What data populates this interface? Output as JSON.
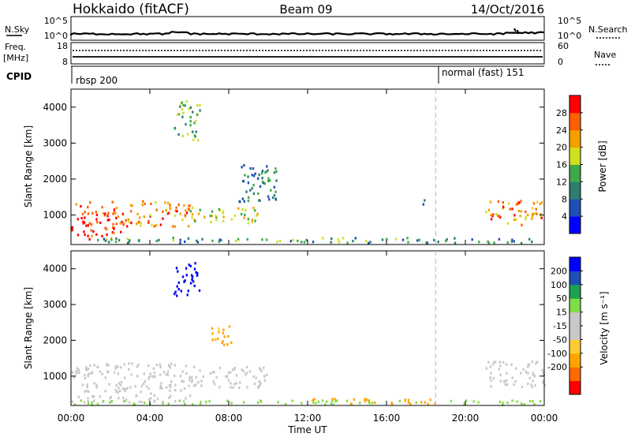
{
  "header": {
    "station": "Hokkaido (fitACF)",
    "beam": "Beam 09",
    "date": "14/Oct/2016"
  },
  "summary_panels": {
    "nsky_label": "N.Sky",
    "nsky_ticks": [
      "10^5",
      "10^0"
    ],
    "nsearch_label": "N.Search",
    "freq_label_1": "Freq.",
    "freq_label_2": "[MHz]",
    "freq_ticks": [
      "18",
      "8"
    ],
    "nave_label": "Nave",
    "nave_ticks": [
      "60",
      "0"
    ],
    "cpid_label": "CPID",
    "cpid_entries": [
      "rbsp 200",
      "normal (fast) 151"
    ]
  },
  "colors": {
    "power_scale": [
      "#0000ff",
      "#1e4fb4",
      "#2e7d6e",
      "#3ea84a",
      "#cfe01e",
      "#f6a000",
      "#ff6000",
      "#ff0000"
    ],
    "velocity_scale": [
      "#ff0000",
      "#ff6a00",
      "#ffa500",
      "#ffcc33",
      "#c8c8c8",
      "#c8c8c8",
      "#7fdd4a",
      "#1ea050",
      "#1e4fb4",
      "#0000ff"
    ],
    "ground_scatter": "#c8c8c8"
  },
  "chart_data": [
    {
      "type": "heatmap",
      "name": "power",
      "ylabel": "Slant Range [km]",
      "xlabel": "Time UT",
      "x_ticks": [
        "00:00",
        "04:00",
        "08:00",
        "12:00",
        "16:00",
        "20:00",
        "00:00"
      ],
      "xlim_hours": [
        0,
        24
      ],
      "y_ticks": [
        1000,
        2000,
        3000,
        4000
      ],
      "ylim_km": [
        180,
        4500
      ],
      "colorbar_label": "Power [dB]",
      "colorbar_ticks": [
        4,
        8,
        12,
        16,
        20,
        24,
        28
      ],
      "colorbar_range": [
        0,
        32
      ],
      "regions": [
        {
          "x": [
            0.0,
            2.6
          ],
          "y": [
            350,
            1400
          ],
          "value": 28
        },
        {
          "x": [
            2.6,
            6.0
          ],
          "y": [
            700,
            1450
          ],
          "value": 24
        },
        {
          "x": [
            6.0,
            9.5
          ],
          "y": [
            800,
            1250
          ],
          "value": 18
        },
        {
          "x": [
            5.2,
            6.5
          ],
          "y": [
            3100,
            4200
          ],
          "value": 14
        },
        {
          "x": [
            8.5,
            10.5
          ],
          "y": [
            1400,
            2500
          ],
          "value": 10
        },
        {
          "x": [
            1.0,
            17.5
          ],
          "y": [
            250,
            400
          ],
          "value": 12
        },
        {
          "x": [
            21.0,
            24.0
          ],
          "y": [
            750,
            1450
          ],
          "value": 24
        },
        {
          "x": [
            17.8,
            18.1
          ],
          "y": [
            1200,
            1450
          ],
          "value": 12
        },
        {
          "x": [
            17.5,
            23.5
          ],
          "y": [
            250,
            400
          ],
          "value": 10
        }
      ]
    },
    {
      "type": "heatmap",
      "name": "velocity",
      "ylabel": "Slant Range [km]",
      "xlabel": "Time UT",
      "x_ticks": [
        "00:00",
        "04:00",
        "08:00",
        "12:00",
        "16:00",
        "20:00",
        "00:00"
      ],
      "xlim_hours": [
        0,
        24
      ],
      "y_ticks": [
        1000,
        2000,
        3000,
        4000
      ],
      "ylim_km": [
        180,
        4500
      ],
      "colorbar_label": "Velocity [m s⁻¹]",
      "colorbar_ticks": [
        200,
        100,
        50,
        15,
        -15,
        -50,
        -100,
        -200
      ],
      "regions": [
        {
          "x": [
            0.0,
            6.0
          ],
          "y": [
            300,
            1400
          ],
          "value": 0
        },
        {
          "x": [
            6.0,
            10.0
          ],
          "y": [
            700,
            1300
          ],
          "value": 0
        },
        {
          "x": [
            5.2,
            6.5
          ],
          "y": [
            3200,
            4200
          ],
          "value": 250
        },
        {
          "x": [
            7.0,
            8.2
          ],
          "y": [
            1900,
            2500
          ],
          "value": -60
        },
        {
          "x": [
            0.0,
            17.5
          ],
          "y": [
            230,
            350
          ],
          "value": 30
        },
        {
          "x": [
            12.0,
            18.5
          ],
          "y": [
            250,
            400
          ],
          "value": -60
        },
        {
          "x": [
            21.0,
            24.0
          ],
          "y": [
            700,
            1450
          ],
          "value": 0
        },
        {
          "x": [
            18.5,
            24.0
          ],
          "y": [
            230,
            350
          ],
          "value": 30
        }
      ]
    }
  ],
  "mode_change_hours": 18.5
}
